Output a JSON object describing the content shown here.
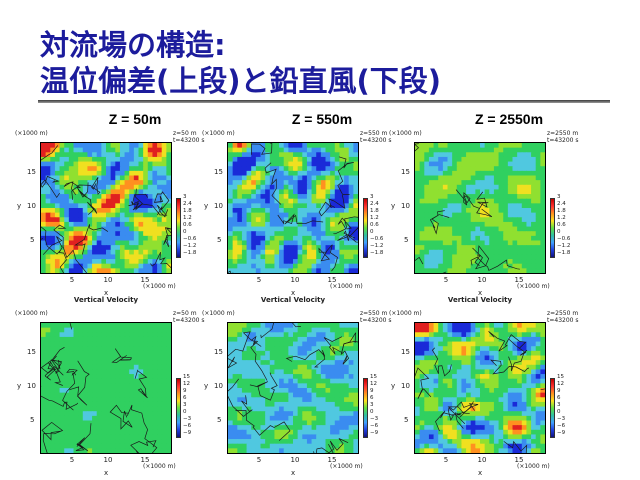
{
  "title": {
    "line1": "対流場の構造:",
    "line2": "温位偏差(上段)と鉛直風(下段)"
  },
  "columns": [
    "Z = 50m",
    "Z = 550m",
    "Z = 2550m"
  ],
  "axis": {
    "y_unit": "(×1000 m)",
    "y_label": "y",
    "y_ticks": [
      "15",
      "10",
      "5"
    ],
    "x_ticks": [
      "5",
      "10",
      "15"
    ],
    "x_unit": "(×1000 m)",
    "x_label": "x"
  },
  "panel_caption": "Vertical Velocity",
  "panels": [
    {
      "row": "top",
      "z_note": "z=50 m",
      "t_note": "t=43200 s",
      "colorbar": [
        "3",
        "2.4",
        "1.8",
        "1.2",
        "0.6",
        "0",
        "−0.6",
        "−1.2",
        "−1.8"
      ],
      "caption": true
    },
    {
      "row": "top",
      "z_note": "z=550 m",
      "t_note": "t=43200 s",
      "colorbar": [
        "3",
        "2.4",
        "1.8",
        "1.2",
        "0.6",
        "0",
        "−0.6",
        "−1.2",
        "−1.8"
      ],
      "caption": true
    },
    {
      "row": "top",
      "z_note": "z=2550 m",
      "t_note": "t=43200 s",
      "colorbar": [
        "3",
        "2.4",
        "1.8",
        "1.2",
        "0.6",
        "0",
        "−0.6",
        "−1.2",
        "−1.8"
      ],
      "caption": true
    },
    {
      "row": "bottom",
      "z_note": "z=50 m",
      "t_note": "t=43200 s",
      "colorbar": [
        "15",
        "12",
        "9",
        "6",
        "3",
        "0",
        "−3",
        "−6",
        "−9"
      ],
      "caption": false
    },
    {
      "row": "bottom",
      "z_note": "z=550 m",
      "t_note": "t=43200 s",
      "colorbar": [
        "15",
        "12",
        "9",
        "6",
        "3",
        "0",
        "−3",
        "−6",
        "−9"
      ],
      "caption": false
    },
    {
      "row": "bottom",
      "z_note": "z=2550 m",
      "t_note": "t=43200 s",
      "colorbar": [
        "15",
        "12",
        "9",
        "6",
        "3",
        "0",
        "−3",
        "−6",
        "−9"
      ],
      "caption": false
    }
  ],
  "colors": {
    "title": "#1c1c9c",
    "field_low": "#1a2ad8",
    "field_mid": "#30d060",
    "field_high": "#e02020"
  }
}
